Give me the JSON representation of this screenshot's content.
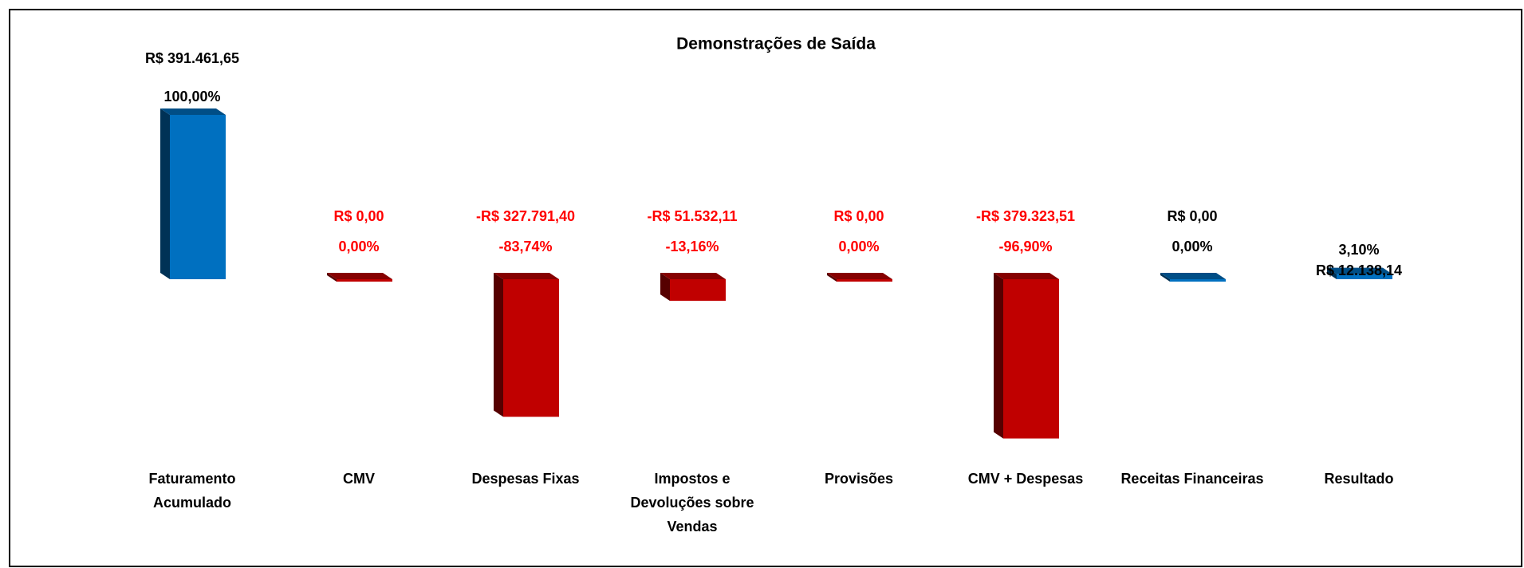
{
  "chart_data": {
    "type": "bar3d",
    "title": "Demonstrações de Saída",
    "categories": [
      "Faturamento Acumulado",
      "CMV",
      "Despesas Fixas",
      "Impostos e Devoluções sobre Vendas",
      "Provisões",
      "CMV + Despesas",
      "Receitas Financeiras",
      "Resultado"
    ],
    "values": [
      391461.65,
      0,
      -327791.4,
      -51532.11,
      0,
      -379323.51,
      0,
      12138.14
    ],
    "value_labels": [
      "R$ 391.461,65",
      "R$ 0,00",
      "-R$ 327.791,40",
      "-R$ 51.532,11",
      "R$ 0,00",
      "-R$ 379.323,51",
      "R$ 0,00",
      "R$ 12.138,14"
    ],
    "percents": [
      100,
      0,
      -83.74,
      -13.16,
      0,
      -96.9,
      0,
      3.1
    ],
    "percent_labels": [
      "100,00%",
      "0,00%",
      "-83,74%",
      "-13,16%",
      "0,00%",
      "-96,90%",
      "0,00%",
      "3,10%"
    ],
    "colors": [
      "#0070c0",
      "#c00000",
      "#c00000",
      "#c00000",
      "#c00000",
      "#c00000",
      "#0070c0",
      "#0070c0"
    ],
    "label_colors": [
      "#000000",
      "#ff0000",
      "#ff0000",
      "#ff0000",
      "#ff0000",
      "#ff0000",
      "#000000",
      "#000000"
    ]
  }
}
